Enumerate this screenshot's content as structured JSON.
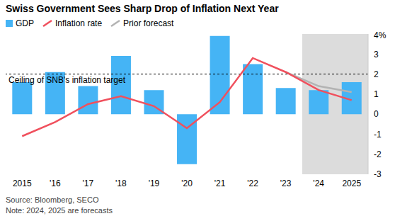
{
  "chart_data": {
    "type": "bar",
    "title": "Swiss Government Sees Sharp Drop of Inflation Next Year",
    "source": "Source: Bloomberg, SECO",
    "note": "Note: 2024, 2025 are forecasts",
    "categories": [
      "2015",
      "'16",
      "'17",
      "'18",
      "'19",
      "'20",
      "'21",
      "'22",
      "'23",
      "'24",
      "2025"
    ],
    "series": [
      {
        "name": "GDP",
        "type": "bar",
        "color": "#45b4f5",
        "values": [
          1.6,
          2.1,
          1.4,
          2.9,
          1.2,
          -2.5,
          3.9,
          2.5,
          1.3,
          1.2,
          1.6
        ]
      },
      {
        "name": "Inflation rate",
        "type": "line",
        "color": "#f0505d",
        "values": [
          -1.1,
          -0.4,
          0.5,
          0.9,
          0.4,
          -0.7,
          0.6,
          2.8,
          2.1,
          1.2,
          0.7
        ]
      },
      {
        "name": "Prior forecast",
        "type": "line",
        "color": "#b3b3b3",
        "values": [
          null,
          null,
          null,
          null,
          null,
          null,
          null,
          null,
          2.1,
          1.4,
          1.1
        ]
      }
    ],
    "ylim": [
      -3,
      4
    ],
    "yticks": [
      -3,
      -2,
      -1,
      0,
      1,
      2,
      3,
      {
        "value": 4,
        "label": "4%"
      }
    ],
    "grid": false,
    "reference_lines": [
      {
        "y": 2,
        "label": "Ceiling of SNB's inflation target"
      }
    ],
    "shaded_range": {
      "from": "'24",
      "to": "2025"
    }
  }
}
